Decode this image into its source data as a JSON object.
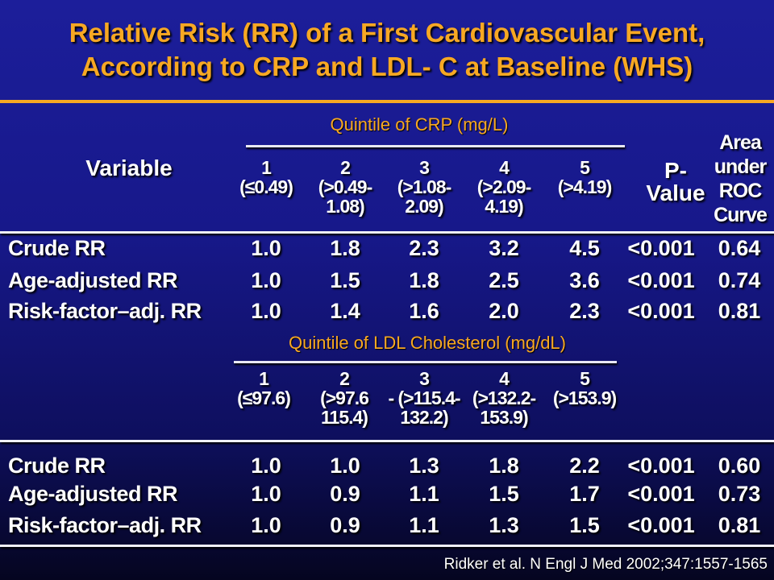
{
  "title": {
    "line1": "Relative Risk (RR) of a First Cardiovascular Event,",
    "line2": "According to CRP and LDL- C at Baseline (WHS)"
  },
  "header": {
    "variable": "Variable",
    "crp_section": "Quintile of CRP (mg/L)",
    "pvalue_line1": "P-",
    "pvalue_line2": "Value",
    "auc_line1": "Area",
    "auc_line2": "under",
    "auc_line3": "ROC",
    "auc_line4": "Curve",
    "crp_quintiles": [
      {
        "l1": "1",
        "l2": "(≤0.49)",
        "l3": ""
      },
      {
        "l1": "2",
        "l2": "(>0.49-",
        "l3": "1.08)"
      },
      {
        "l1": "3",
        "l2": "(>1.08-",
        "l3": "2.09)"
      },
      {
        "l1": "4",
        "l2": "(>2.09-",
        "l3": "4.19)"
      },
      {
        "l1": "5",
        "l2": "(>4.19)",
        "l3": ""
      }
    ]
  },
  "crp_rows": [
    {
      "label": "Crude RR",
      "values": [
        "1.0",
        "1.8",
        "2.3",
        "3.2",
        "4.5"
      ],
      "p": "<0.001",
      "auc": "0.64"
    },
    {
      "label": "Age-adjusted RR",
      "values": [
        "1.0",
        "1.5",
        "1.8",
        "2.5",
        "3.6"
      ],
      "p": "<0.001",
      "auc": "0.74"
    },
    {
      "label": "Risk-factor–adj. RR",
      "values": [
        "1.0",
        "1.4",
        "1.6",
        "2.0",
        "2.3"
      ],
      "p": "<0.001",
      "auc": "0.81"
    }
  ],
  "ldl": {
    "section": "Quintile of LDL Cholesterol (mg/dL)",
    "quintiles": [
      {
        "l1": "1",
        "l2": "(≤97.6)",
        "l3": ""
      },
      {
        "l1": "2",
        "l2": "(>97.6",
        "l3": "115.4)"
      },
      {
        "l1": "3",
        "l2": "- (>115.4-",
        "l3": "132.2)"
      },
      {
        "l1": "4",
        "l2": "(>132.2-",
        "l3": "153.9)"
      },
      {
        "l1": "5",
        "l2": "(>153.9)",
        "l3": ""
      }
    ]
  },
  "ldl_rows": [
    {
      "label": "Crude RR",
      "values": [
        "1.0",
        "1.0",
        "1.3",
        "1.8",
        "2.2"
      ],
      "p": "<0.001",
      "auc": "0.60"
    },
    {
      "label": "Age-adjusted RR",
      "values": [
        "1.0",
        "0.9",
        "1.1",
        "1.5",
        "1.7"
      ],
      "p": "<0.001",
      "auc": "0.73"
    },
    {
      "label": "Risk-factor–adj. RR",
      "values": [
        "1.0",
        "0.9",
        "1.1",
        "1.3",
        "1.5"
      ],
      "p": "<0.001",
      "auc": "0.81"
    }
  ],
  "footer": "Ridker et al. N Engl J Med 2002;347:1557-1565",
  "colors": {
    "title": "#f7a823",
    "section_label": "#f7a823",
    "text": "#ffffff",
    "background": "#1c1e9a"
  }
}
